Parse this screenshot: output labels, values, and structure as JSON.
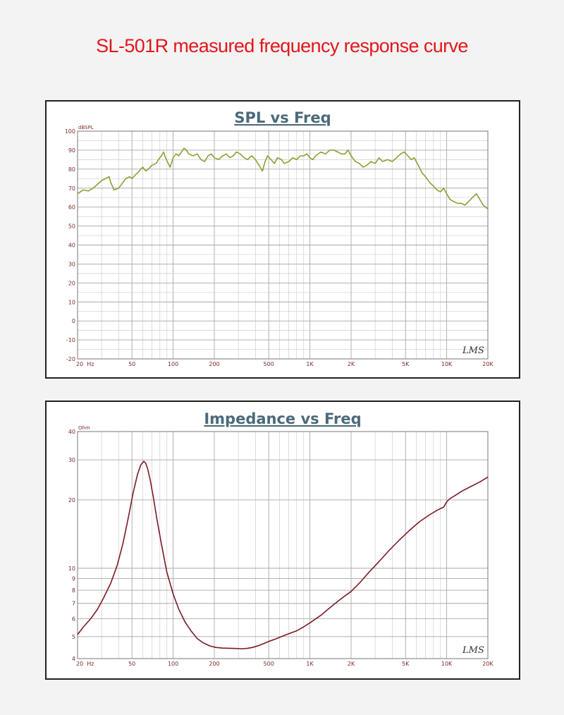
{
  "page": {
    "title": "SL-501R measured frequency response curve"
  },
  "chart_data": [
    {
      "type": "line",
      "title": "SPL vs Freq",
      "ylabel": "dBSPL",
      "xlabel": "",
      "xscale": "log",
      "xlim": [
        20,
        20000
      ],
      "ylim": [
        -20,
        100
      ],
      "xticks": [
        20,
        50,
        100,
        200,
        500,
        1000,
        2000,
        5000,
        10000,
        20000
      ],
      "xtick_labels": [
        "20  Hz",
        "50",
        "100",
        "200",
        "500",
        "1K",
        "2K",
        "5K",
        "10K",
        "20K"
      ],
      "yticks": [
        -20,
        -10,
        0,
        10,
        20,
        30,
        40,
        50,
        60,
        70,
        80,
        90,
        100
      ],
      "ytick_labels": [
        "-20",
        "-10",
        "0",
        "10",
        "20",
        "30",
        "40",
        "50",
        "60",
        "70",
        "80",
        "90",
        "100"
      ],
      "grid": true,
      "watermark": "LMS",
      "color": "#8aa033",
      "series": [
        {
          "x": [
            20,
            22,
            24,
            26,
            28,
            30,
            32,
            34,
            35,
            37,
            40,
            43,
            45,
            48,
            50,
            53,
            55,
            58,
            60,
            63,
            66,
            70,
            75,
            78,
            82,
            85,
            88,
            92,
            95,
            100,
            105,
            110,
            115,
            120,
            125,
            130,
            140,
            150,
            160,
            170,
            180,
            190,
            200,
            215,
            230,
            245,
            260,
            275,
            290,
            310,
            330,
            350,
            375,
            400,
            425,
            450,
            470,
            490,
            520,
            550,
            580,
            620,
            650,
            700,
            750,
            800,
            850,
            900,
            950,
            1000,
            1050,
            1100,
            1200,
            1300,
            1400,
            1500,
            1600,
            1700,
            1800,
            1900,
            2000,
            2150,
            2300,
            2450,
            2600,
            2800,
            3000,
            3200,
            3400,
            3700,
            4000,
            4300,
            4600,
            4900,
            5200,
            5500,
            5800,
            6200,
            6600,
            7000,
            7500,
            8000,
            8500,
            9000,
            9500,
            10000,
            10600,
            11200,
            12000,
            12800,
            13600,
            14500,
            15400,
            16500,
            17500,
            18500,
            20000
          ],
          "y": [
            67,
            69,
            68.5,
            70,
            72,
            74,
            75,
            76,
            73,
            69,
            70,
            73,
            75,
            76,
            75,
            77,
            78,
            80,
            81,
            79,
            80,
            82,
            83,
            85,
            87,
            89,
            86,
            83,
            81,
            86,
            88,
            87,
            89,
            91,
            90,
            88,
            87,
            88,
            85,
            84,
            87,
            88,
            86,
            85,
            87,
            88,
            86,
            87,
            89,
            88,
            86,
            85,
            87,
            85,
            82,
            79,
            84,
            87,
            85,
            83,
            86,
            85,
            83,
            84,
            86,
            85,
            87,
            87,
            88,
            86,
            85,
            87,
            89,
            88,
            90,
            90,
            89,
            88,
            88,
            90,
            87,
            84,
            83,
            81,
            82,
            84,
            83,
            86,
            84,
            85,
            84,
            86,
            88,
            89,
            87,
            85,
            86,
            82,
            78,
            76,
            73,
            71,
            69,
            68,
            70,
            67,
            64,
            63,
            62,
            62,
            61,
            63,
            65,
            67,
            64,
            61,
            59
          ]
        }
      ]
    },
    {
      "type": "line",
      "title": "Impedance vs Freq",
      "ylabel": "Ohm",
      "xlabel": "",
      "xscale": "log",
      "yscale": "log",
      "xlim": [
        20,
        20000
      ],
      "ylim": [
        4,
        40
      ],
      "xticks": [
        20,
        50,
        100,
        200,
        500,
        1000,
        2000,
        5000,
        10000,
        20000
      ],
      "xtick_labels": [
        "20  Hz",
        "50",
        "100",
        "200",
        "500",
        "1K",
        "2K",
        "5K",
        "10K",
        "20K"
      ],
      "yticks": [
        4,
        5,
        6,
        7,
        8,
        9,
        10,
        20,
        30,
        40
      ],
      "ytick_labels": [
        "4",
        "5",
        "6",
        "7",
        "8",
        "9",
        "10",
        "20",
        "30",
        "40"
      ],
      "grid": true,
      "watermark": "LMS",
      "color": "#7b1a24",
      "series": [
        {
          "x": [
            20,
            22,
            25,
            28,
            31,
            35,
            39,
            43,
            47,
            51,
            55,
            58,
            61,
            63,
            65,
            68,
            72,
            76,
            82,
            90,
            100,
            110,
            122,
            135,
            150,
            165,
            185,
            205,
            230,
            260,
            290,
            320,
            350,
            380,
            420,
            460,
            500,
            560,
            620,
            700,
            800,
            900,
            1000,
            1200,
            1400,
            1600,
            1800,
            2000,
            2300,
            2700,
            3200,
            3800,
            4500,
            5300,
            6300,
            7500,
            8500,
            9500,
            10000,
            10500,
            11500,
            13000,
            15000,
            17500,
            20000
          ],
          "y": [
            5.1,
            5.5,
            6,
            6.6,
            7.4,
            8.6,
            10.3,
            12.9,
            16.7,
            21.5,
            26,
            28.5,
            29.6,
            29,
            27.5,
            24.5,
            20.2,
            16.5,
            12.8,
            9.6,
            7.7,
            6.6,
            5.8,
            5.3,
            4.9,
            4.7,
            4.55,
            4.48,
            4.45,
            4.44,
            4.43,
            4.42,
            4.44,
            4.48,
            4.56,
            4.66,
            4.76,
            4.88,
            5,
            5.15,
            5.3,
            5.52,
            5.75,
            6.2,
            6.7,
            7.15,
            7.55,
            7.9,
            8.6,
            9.6,
            10.7,
            12,
            13.3,
            14.6,
            16,
            17.2,
            18,
            18.6,
            19.6,
            20.2,
            20.9,
            21.9,
            22.9,
            24,
            25.2
          ]
        }
      ]
    }
  ]
}
